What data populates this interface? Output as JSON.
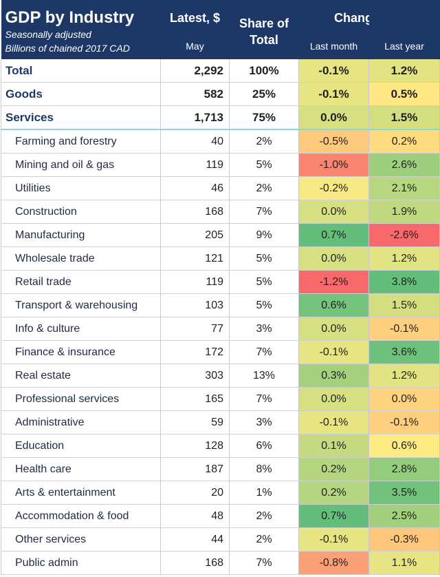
{
  "header": {
    "title": "GDP by Industry",
    "subtitle1": "Seasonally adjusted",
    "subtitle2": "Billions of chained 2017 CAD",
    "latest_label": "Latest, $",
    "latest_sub": "May",
    "share_label": "Share of Total",
    "changes_label": "Changes, %",
    "last_month_label": "Last month",
    "last_year_label": "Last year"
  },
  "colors": {
    "header_bg": "#1d3866",
    "scale_low": "#f8696b",
    "scale_mid": "#ffeb84",
    "scale_high": "#63be7b"
  },
  "chart_data": {
    "type": "table",
    "title": "GDP by Industry",
    "columns": [
      "Latest, $",
      "Share of Total",
      "Last month",
      "Last year"
    ],
    "rows": [
      {
        "name": "Total",
        "latest": "2,292",
        "share": "100%",
        "last_month": "-0.1%",
        "last_year": "1.2%",
        "major": true
      },
      {
        "name": "Goods",
        "latest": "582",
        "share": "25%",
        "last_month": "-0.1%",
        "last_year": "0.5%",
        "major": true
      },
      {
        "name": "Services",
        "latest": "1,713",
        "share": "75%",
        "last_month": "0.0%",
        "last_year": "1.5%",
        "major": true
      },
      {
        "name": "Farming and forestry",
        "latest": "40",
        "share": "2%",
        "last_month": "-0.5%",
        "last_year": "0.2%"
      },
      {
        "name": "Mining and oil & gas",
        "latest": "119",
        "share": "5%",
        "last_month": "-1.0%",
        "last_year": "2.6%"
      },
      {
        "name": "Utilities",
        "latest": "46",
        "share": "2%",
        "last_month": "-0.2%",
        "last_year": "2.1%"
      },
      {
        "name": "Construction",
        "latest": "168",
        "share": "7%",
        "last_month": "0.0%",
        "last_year": "1.9%"
      },
      {
        "name": "Manufacturing",
        "latest": "205",
        "share": "9%",
        "last_month": "0.7%",
        "last_year": "-2.6%"
      },
      {
        "name": "Wholesale trade",
        "latest": "121",
        "share": "5%",
        "last_month": "0.0%",
        "last_year": "1.2%"
      },
      {
        "name": "Retail trade",
        "latest": "119",
        "share": "5%",
        "last_month": "-1.2%",
        "last_year": "3.8%"
      },
      {
        "name": "Transport & warehousing",
        "latest": "103",
        "share": "5%",
        "last_month": "0.6%",
        "last_year": "1.5%"
      },
      {
        "name": "Info & culture",
        "latest": "77",
        "share": "3%",
        "last_month": "0.0%",
        "last_year": "-0.1%"
      },
      {
        "name": "Finance & insurance",
        "latest": "172",
        "share": "7%",
        "last_month": "-0.1%",
        "last_year": "3.6%"
      },
      {
        "name": "Real estate",
        "latest": "303",
        "share": "13%",
        "last_month": "0.3%",
        "last_year": "1.2%"
      },
      {
        "name": "Professional services",
        "latest": "165",
        "share": "7%",
        "last_month": "0.0%",
        "last_year": "0.0%"
      },
      {
        "name": "Administrative",
        "latest": "59",
        "share": "3%",
        "last_month": "-0.1%",
        "last_year": "-0.1%"
      },
      {
        "name": "Education",
        "latest": "128",
        "share": "6%",
        "last_month": "0.1%",
        "last_year": "0.6%"
      },
      {
        "name": "Health care",
        "latest": "187",
        "share": "8%",
        "last_month": "0.2%",
        "last_year": "2.8%"
      },
      {
        "name": "Arts & entertainment",
        "latest": "20",
        "share": "1%",
        "last_month": "0.2%",
        "last_year": "3.5%"
      },
      {
        "name": "Accommodation & food",
        "latest": "48",
        "share": "2%",
        "last_month": "0.7%",
        "last_year": "2.5%"
      },
      {
        "name": "Other services",
        "latest": "44",
        "share": "2%",
        "last_month": "-0.1%",
        "last_year": "-0.3%"
      },
      {
        "name": "Public admin",
        "latest": "168",
        "share": "7%",
        "last_month": "-0.8%",
        "last_year": "1.1%"
      }
    ]
  }
}
